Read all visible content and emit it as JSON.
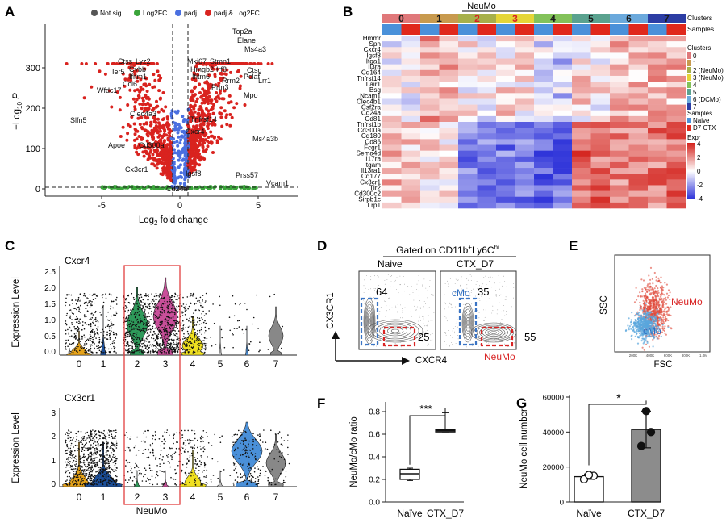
{
  "panel_letters": {
    "A": "A",
    "B": "B",
    "C": "C",
    "D": "D",
    "E": "E",
    "F": "F",
    "G": "G"
  },
  "colors": {
    "notsig": "#555555",
    "log2fc": "#3aa43a",
    "padj": "#4a6fe0",
    "both": "#d9231f"
  },
  "volcano": {
    "legend": [
      "Not sig.",
      "Log2FC",
      "padj",
      "padj & Log2FC"
    ],
    "xlabel_pre": "Log",
    "xlabel_sub": "2",
    "xlabel_post": " fold change",
    "ylabel_pre": "−Log",
    "ylabel_sub": "10",
    "ylabel_var": "P",
    "yticks": [
      "0",
      "100",
      "200",
      "300"
    ],
    "xticks": [
      "-5",
      "0",
      "5"
    ],
    "genes": [
      "Top2a",
      "Elane",
      "Ctss",
      "Lyz2",
      "Mki67",
      "Stmn1",
      "Ms4a3",
      "Ctsg",
      "Cybb",
      "Hmgb2",
      "Ifitm1",
      "Ier5",
      "Pclaf",
      "Ccl6",
      "Mpo",
      "Ifitm6",
      "Irf8",
      "Rrm2",
      "Prtn3",
      "Wfdc17",
      "Lrr1",
      "Clec4a3",
      "Slfn5",
      "Apoe",
      "Cd300a",
      "Cx3cr1",
      "Cxcr4",
      "Igsf8",
      "Cd24a",
      "Ms4a3b",
      "Prss57",
      "Vcam1",
      "Tnfrsf14"
    ]
  },
  "heatmap": {
    "title_group": "NeuMo",
    "cluster_labels": [
      "0",
      "1",
      "2",
      "3",
      "4",
      "5",
      "6",
      "7"
    ],
    "cluster_label_colors": [
      "#1a1a1a",
      "#1a1a1a",
      "#d82020",
      "#d82020",
      "#1a1a1a",
      "#1a1a1a",
      "#1a1a1a",
      "#1a1a1a"
    ],
    "cluster_colors": [
      "#e0787a",
      "#c89a4e",
      "#a7b04a",
      "#e5d537",
      "#83c25a",
      "#5aa28f",
      "#6ba9dc",
      "#2c3da4"
    ],
    "sample_colors": [
      "#4a90d9",
      "#e0281c"
    ],
    "row_clusters": "Clusters",
    "row_samples": "Samples",
    "genes": [
      "Hmmr",
      "Spn",
      "Cxcr4",
      "Igsf8",
      "Itga1",
      "Il3ra",
      "Cd164",
      "Tnfrsf14",
      "Lair1",
      "Bsg",
      "Ncam1",
      "Clec4b1",
      "Csf2ra",
      "Cd24a",
      "Cd81",
      "Tnfrsf1b",
      "Cd300a",
      "Cd180",
      "Cd86",
      "Fcgr1",
      "Sema4d",
      "Il17ra",
      "Itgam",
      "Il13ra1",
      "Cd177",
      "Cx3cr1",
      "Tlr2",
      "Cd300c2",
      "Sirpb1c",
      "Lrp1"
    ],
    "legend_clusters_title": "Clusters",
    "legend_clusters": [
      "0",
      "1",
      "2 (NeuMo)",
      "3 (NeuMo)",
      "4",
      "5",
      "6 (DCMo)",
      "7"
    ],
    "legend_samples_title": "Samples",
    "legend_samples": [
      "Naive",
      "D7 CTX"
    ],
    "legend_expr_title": "Expr",
    "legend_expr_ticks": [
      "4",
      "2",
      "0",
      "-2",
      "-4"
    ]
  },
  "violin": {
    "top_title": "Cxcr4",
    "bottom_title": "Cx3cr1",
    "ylabel": "Expression Level",
    "top_yticks": [
      "0.0",
      "0.5",
      "1.0",
      "1.5",
      "2.0",
      "2.5"
    ],
    "bottom_yticks": [
      "0",
      "1",
      "2",
      "3"
    ],
    "clusters": [
      "0",
      "1",
      "2",
      "3",
      "4",
      "5",
      "6",
      "7"
    ],
    "xlabel": "NeuMo",
    "colors": [
      "#e6a31a",
      "#1c4f9a",
      "#2e9a5a",
      "#c94f9a",
      "#f0e020",
      "#bbbbbb",
      "#4a90d9",
      "#888888"
    ]
  },
  "flow_d": {
    "title_pre": "Gated on CD11b",
    "title_sup1": "+",
    "title_mid": "Ly6C",
    "title_sup2": "hi",
    "naive_label": "Naive",
    "ctx_label": "CTX_D7",
    "ylabel": "CX3CR1",
    "xlabel": "CXCR4",
    "naive_cmo_pct": "64",
    "naive_neumo_pct": "25",
    "ctx_cmo_pct": "35",
    "ctx_neumo_pct": "55",
    "cmo_label": "cMo",
    "neumo_label": "NeuMo"
  },
  "flow_e": {
    "ylabel": "SSC",
    "xlabel": "FSC",
    "neumo_label": "NeuMo",
    "cmo_label": "cMo",
    "xticks": [
      "200K",
      "400K",
      "600K",
      "800K",
      "1.0M"
    ]
  },
  "chart_data": [
    {
      "type": "box",
      "ylabel": "NeuMo/cMo ratio",
      "categories": [
        "Naïve",
        "CTX_D7"
      ],
      "ylim": [
        0.0,
        0.8
      ],
      "yticks": [
        "0.0",
        "0.2",
        "0.4",
        "0.6",
        "0.8"
      ],
      "series": [
        {
          "category": "Naïve",
          "min": 0.19,
          "q1": 0.2,
          "median": 0.25,
          "q3": 0.29,
          "max": 0.3
        },
        {
          "category": "CTX_D7",
          "min": 0.62,
          "q1": 0.62,
          "median": 0.63,
          "q3": 0.64,
          "max": 0.79
        }
      ],
      "significance": "***"
    },
    {
      "type": "bar",
      "ylabel": "NeuMo cell number",
      "categories": [
        "Naïve",
        "CTX_D7"
      ],
      "ylim": [
        0,
        60000
      ],
      "yticks": [
        "0",
        "20000",
        "40000",
        "60000"
      ],
      "values": [
        14500,
        41500
      ],
      "errors": [
        1500,
        10500
      ],
      "points": [
        [
          13000,
          15000,
          15500
        ],
        [
          32000,
          40000,
          52000
        ]
      ],
      "bar_colors": [
        "#ffffff",
        "#8c8c8c"
      ],
      "significance": "*"
    }
  ]
}
